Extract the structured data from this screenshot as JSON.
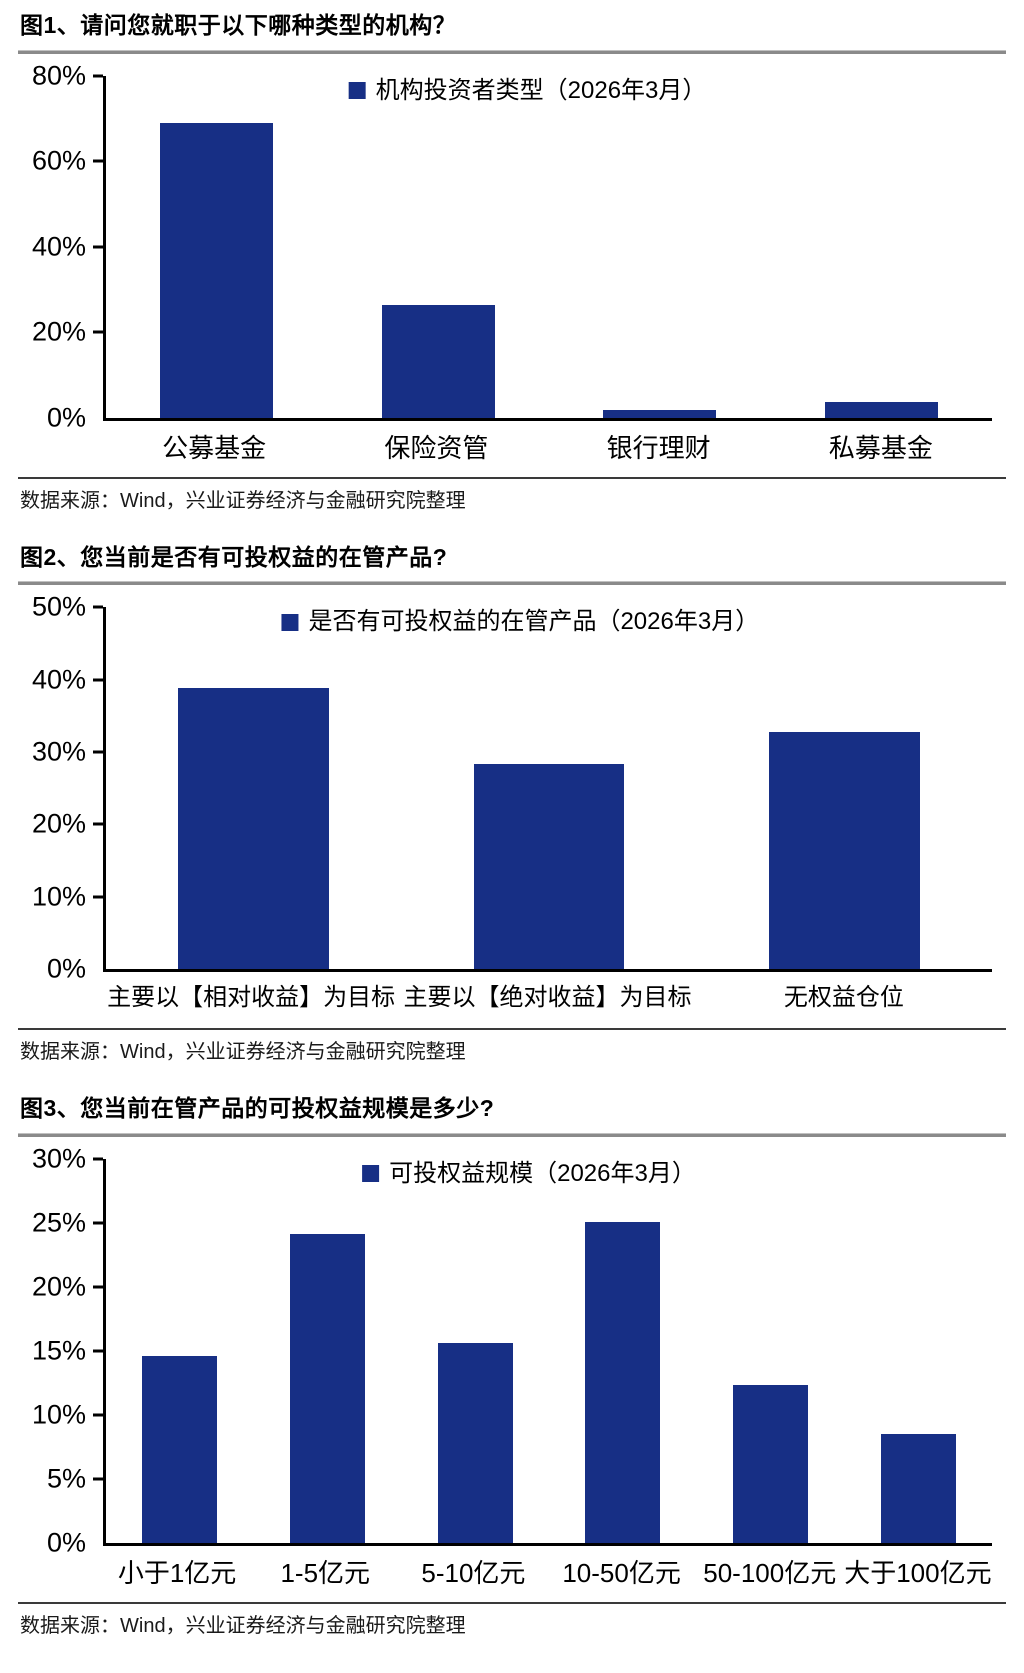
{
  "figures": [
    {
      "title": "图1、请问您就职于以下哪种类型的机构？",
      "source": "数据来源：Wind，兴业证券经济与金融研究院整理"
    },
    {
      "title": "图2、您当前是否有可投权益的在管产品?",
      "source": "数据来源：Wind，兴业证券经济与金融研究院整理"
    },
    {
      "title": "图3、您当前在管产品的可投权益规模是多少?",
      "source": "数据来源：Wind，兴业证券经济与金融研究院整理"
    }
  ],
  "colors": {
    "bar": "#172f85",
    "axis": "#000000",
    "title_rule": "#8a8a8a",
    "source_rule": "#3a3a3a"
  },
  "chart_data": [
    {
      "type": "bar",
      "legend": "机构投资者类型（2026年3月）",
      "categories": [
        "公募基金",
        "保险资管",
        "银行理财",
        "私募基金"
      ],
      "values": [
        68.8,
        26.3,
        1.8,
        3.7
      ],
      "ylabel": "",
      "xlabel": "",
      "ylim": [
        0,
        80
      ],
      "ytick_step": 20,
      "ytick_format": "percent",
      "grid": false,
      "legend_position": "top-center"
    },
    {
      "type": "bar",
      "legend": "是否有可投权益的在管产品（2026年3月）",
      "categories": [
        "主要以【相对收益】为目标",
        "主要以【绝对收益】为目标",
        "无权益仓位"
      ],
      "values": [
        38.8,
        28.3,
        32.8
      ],
      "ylabel": "",
      "xlabel": "",
      "ylim": [
        0,
        50
      ],
      "ytick_step": 10,
      "ytick_format": "percent",
      "grid": false,
      "legend_position": "top-center"
    },
    {
      "type": "bar",
      "legend": "可投权益规模（2026年3月）",
      "categories": [
        "小于1亿元",
        "1-5亿元",
        "5-10亿元",
        "10-50亿元",
        "50-100亿元",
        "大于100亿元"
      ],
      "values": [
        14.6,
        24.1,
        15.6,
        25.1,
        12.3,
        8.5
      ],
      "ylabel": "",
      "xlabel": "",
      "ylim": [
        0,
        30
      ],
      "ytick_step": 5,
      "ytick_format": "percent",
      "grid": false,
      "legend_position": "top-center"
    }
  ]
}
